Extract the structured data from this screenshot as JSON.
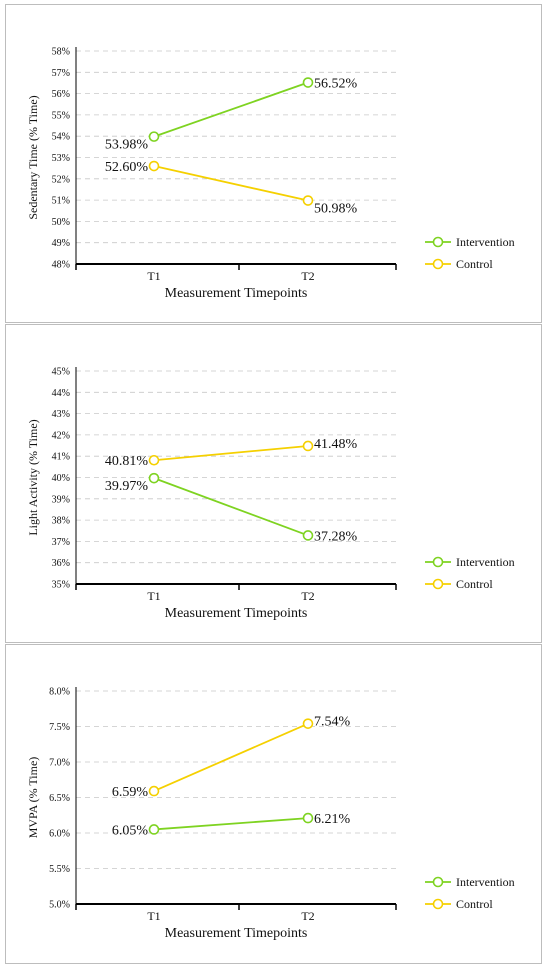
{
  "colors": {
    "intervention": "#7ed321",
    "control": "#f5d000",
    "grid": "#c8c8c8",
    "axis": "#000000"
  },
  "chart_data": [
    {
      "type": "line",
      "xlabel": "Measurement Timepoints",
      "ylabel": "Sedentary Time (% Time)",
      "categories": [
        "T1",
        "T2"
      ],
      "ylim": [
        48,
        58
      ],
      "yticks": [
        "48%",
        "49%",
        "50%",
        "51%",
        "52%",
        "53%",
        "54%",
        "55%",
        "56%",
        "57%",
        "58%"
      ],
      "grid": true,
      "legend": "right",
      "series": [
        {
          "name": "Intervention",
          "values": [
            53.98,
            56.52
          ],
          "labels": [
            "53.98%",
            "56.52%"
          ]
        },
        {
          "name": "Control",
          "values": [
            52.6,
            50.98
          ],
          "labels": [
            "52.60%",
            "50.98%"
          ]
        }
      ]
    },
    {
      "type": "line",
      "xlabel": "Measurement Timepoints",
      "ylabel": "Light Activity (% Time)",
      "categories": [
        "T1",
        "T2"
      ],
      "ylim": [
        35,
        45
      ],
      "yticks": [
        "35%",
        "36%",
        "37%",
        "38%",
        "39%",
        "40%",
        "41%",
        "42%",
        "43%",
        "44%",
        "45%"
      ],
      "grid": true,
      "legend": "right",
      "series": [
        {
          "name": "Intervention",
          "values": [
            39.97,
            37.28
          ],
          "labels": [
            "39.97%",
            "37.28%"
          ]
        },
        {
          "name": "Control",
          "values": [
            40.81,
            41.48
          ],
          "labels": [
            "40.81%",
            "41.48%"
          ]
        }
      ]
    },
    {
      "type": "line",
      "xlabel": "Measurement Timepoints",
      "ylabel": "MVPA (% Time)",
      "categories": [
        "T1",
        "T2"
      ],
      "ylim": [
        5.0,
        8.0
      ],
      "yticks": [
        "5.0%",
        "5.5%",
        "6.0%",
        "6.5%",
        "7.0%",
        "7.5%",
        "8.0%"
      ],
      "grid": true,
      "legend": "right",
      "series": [
        {
          "name": "Intervention",
          "values": [
            6.05,
            6.21
          ],
          "labels": [
            "6.05%",
            "6.21%"
          ]
        },
        {
          "name": "Control",
          "values": [
            6.59,
            7.54
          ],
          "labels": [
            "6.59%",
            "7.54%"
          ]
        }
      ]
    }
  ]
}
